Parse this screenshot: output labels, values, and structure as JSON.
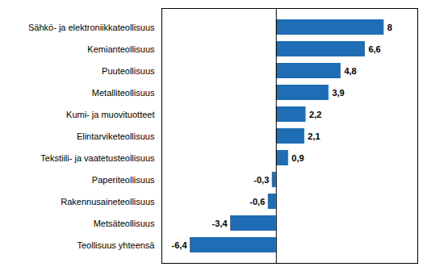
{
  "chart_data": {
    "type": "bar",
    "orientation": "horizontal",
    "categories": [
      "Sähkö- ja elektroniikkateollisuus",
      "Kemianteollisuus",
      "Puuteollisuus",
      "Metalliteollisuus",
      "Kumi- ja muovituotteet",
      "Elintarviketeollisuus",
      "Tekstiili- ja vaatetusteollisuus",
      "Paperiteollisuus",
      "Rakennusaineteollisuus",
      "Metsäteollisuus",
      "Teollisuus yhteensä"
    ],
    "values": [
      8.0,
      6.6,
      4.8,
      3.9,
      2.2,
      2.1,
      0.9,
      -0.3,
      -0.6,
      -3.4,
      -6.4
    ],
    "value_labels": [
      "8",
      "6,6",
      "4,8",
      "3,9",
      "2,2",
      "2,1",
      "0,9",
      "-0,3",
      "-0,6",
      "-3,4",
      "-6,4"
    ],
    "color": "#1f6db5",
    "xlim": [
      -8.5,
      10.5
    ],
    "data_labels": true,
    "tick_labels": "y"
  }
}
